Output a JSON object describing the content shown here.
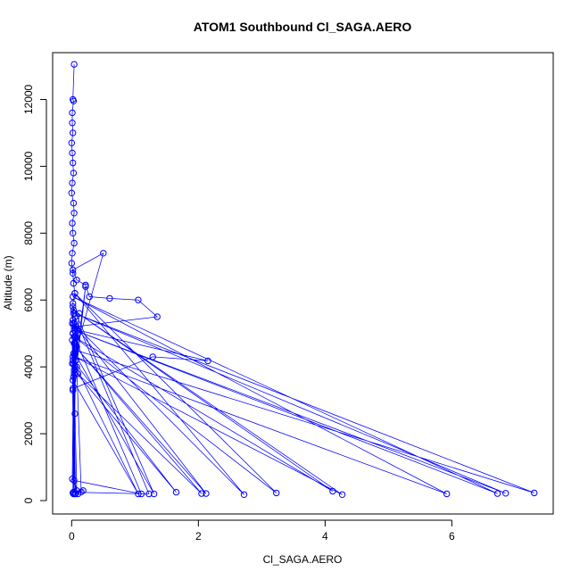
{
  "chart_data": {
    "type": "line",
    "title": "ATOM1 Southbound Cl_SAGA.AERO",
    "xlabel": "Cl_SAGA.AERO",
    "ylabel": "Altitude (m)",
    "xlim": [
      -0.3,
      7.6
    ],
    "ylim": [
      -400,
      13400
    ],
    "xticks": [
      0,
      2,
      4,
      6
    ],
    "xtick_labels": [
      "0",
      "2",
      "4",
      "6"
    ],
    "yticks": [
      0,
      2000,
      4000,
      6000,
      8000,
      10000,
      12000
    ],
    "ytick_labels": [
      "0",
      "2000",
      "4000",
      "6000",
      "8000",
      "10000",
      "12000"
    ],
    "grid": false,
    "series_color": "#0000ff",
    "markers": "open-circle",
    "series": [
      {
        "x": [
          0.04,
          0.02,
          0.03,
          0.01,
          0.01,
          0.02,
          0.0,
          0.01,
          0.02,
          0.03,
          0.01,
          0.0,
          0.03,
          0.04,
          0.01,
          0.02,
          0.04,
          0.01,
          0.0,
          0.02,
          0.03,
          0.05,
          0.02,
          0.03,
          0.01,
          0.02,
          0.04,
          0.03,
          0.01,
          0.5,
          0.02,
          0.08,
          0.22,
          0.28,
          0.6,
          1.05,
          1.35,
          0.04,
          0.06,
          0.08,
          0.02,
          0.05,
          0.1,
          0.03,
          0.07,
          0.02,
          1.28,
          2.15,
          0.09,
          0.04,
          0.06,
          0.12,
          0.02,
          0.05,
          0.03,
          0.01,
          0.08,
          0.02,
          0.06,
          0.1,
          0.04,
          1.1,
          0.02,
          0.05,
          0.01,
          0.03,
          0.02,
          1.3,
          0.05,
          0.03,
          0.07,
          0.05,
          0.02,
          1.05,
          0.02,
          1.65,
          0.04,
          2.05,
          0.06,
          2.12,
          0.03,
          2.72,
          0.05,
          3.23,
          0.04,
          4.12,
          0.03,
          4.27,
          0.05,
          5.92,
          0.02,
          6.72,
          0.04,
          6.85,
          0.05,
          7.3,
          0.06,
          0.1,
          0.04,
          0.22,
          0.08,
          0.15,
          0.03,
          1.22,
          0.05,
          0.02,
          0.18
        ],
        "y": [
          13050,
          12000,
          11950,
          11600,
          11300,
          11000,
          10700,
          10400,
          10100,
          9800,
          9500,
          9200,
          8900,
          8600,
          8300,
          8000,
          7700,
          7400,
          7100,
          6800,
          6500,
          6200,
          5900,
          5600,
          5300,
          5000,
          4700,
          4400,
          4100,
          7400,
          6900,
          6600,
          6450,
          6100,
          6050,
          6000,
          5500,
          5200,
          4900,
          4600,
          4300,
          4000,
          3800,
          3700,
          4200,
          3350,
          4300,
          4180,
          5100,
          3900,
          4500,
          5600,
          3300,
          2600,
          4100,
          650,
          300,
          5400,
          200,
          200,
          600,
          200,
          5000,
          200,
          4800,
          250,
          5800,
          200,
          4400,
          200,
          5200,
          4700,
          3600,
          200,
          4200,
          250,
          3900,
          210,
          4600,
          210,
          5300,
          180,
          6200,
          230,
          4900,
          280,
          5700,
          180,
          4300,
          200,
          6100,
          210,
          5100,
          220,
          5600,
          230,
          4500,
          5000,
          3800,
          6400,
          4000,
          260,
          250,
          200,
          5500,
          230,
          300
        ]
      }
    ]
  }
}
